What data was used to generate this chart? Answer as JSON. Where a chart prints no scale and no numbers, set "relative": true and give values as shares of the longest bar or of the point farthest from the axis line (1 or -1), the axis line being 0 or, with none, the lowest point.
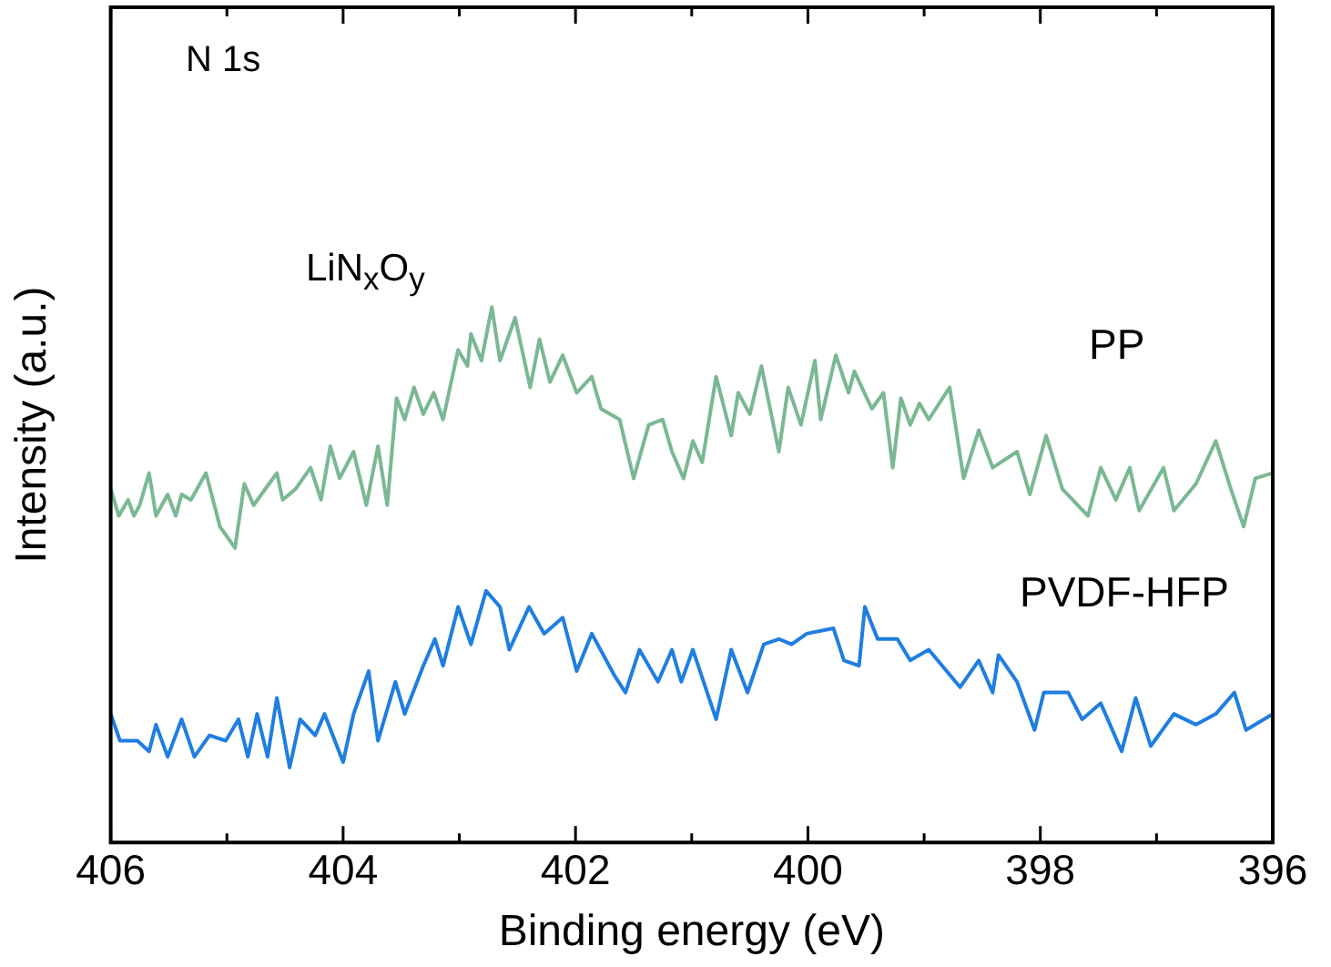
{
  "chart_data": {
    "type": "line",
    "xlabel": "Binding energy (eV)",
    "ylabel": "Intensity (a.u.)",
    "relative": true,
    "legend": false,
    "grid": false,
    "marker": "none",
    "line_style": "solid",
    "xlim": [
      406,
      396
    ],
    "xticks": [
      406,
      {
        "value": 405,
        "label": null
      },
      404,
      {
        "value": 403,
        "label": null
      },
      402,
      {
        "value": 401,
        "label": null
      },
      400,
      {
        "value": 399,
        "label": null
      },
      398,
      {
        "value": 397,
        "label": null
      },
      396
    ],
    "annotations": [
      "N 1s",
      "LiN$_{x}$O$_{y}$"
    ],
    "series": [
      {
        "name": "PP",
        "color": "#7ab893",
        "x": [
          406.0,
          405.93,
          405.85,
          405.8,
          405.75,
          405.67,
          405.61,
          405.51,
          405.44,
          405.39,
          405.31,
          405.18,
          405.06,
          404.93,
          404.85,
          404.77,
          404.57,
          404.52,
          404.41,
          404.28,
          404.19,
          404.11,
          404.03,
          403.91,
          403.8,
          403.7,
          403.62,
          403.54,
          403.47,
          403.39,
          403.31,
          403.22,
          403.14,
          403.01,
          402.93,
          402.9,
          402.81,
          402.72,
          402.65,
          402.52,
          402.39,
          402.31,
          402.22,
          402.11,
          401.99,
          401.86,
          401.78,
          401.62,
          401.5,
          401.37,
          401.25,
          401.17,
          401.07,
          400.99,
          400.91,
          400.79,
          400.66,
          400.6,
          400.5,
          400.4,
          400.25,
          400.17,
          400.06,
          399.94,
          399.89,
          399.76,
          399.65,
          399.6,
          399.45,
          399.35,
          399.27,
          399.2,
          399.12,
          399.04,
          398.96,
          398.78,
          398.66,
          398.53,
          398.41,
          398.2,
          398.09,
          397.95,
          397.81,
          397.59,
          397.48,
          397.35,
          397.23,
          397.15,
          396.94,
          396.85,
          396.66,
          396.49,
          396.36,
          396.25,
          396.15,
          396.0
        ],
        "values": [
          0.66,
          0.61,
          0.64,
          0.61,
          0.63,
          0.69,
          0.61,
          0.65,
          0.61,
          0.65,
          0.64,
          0.69,
          0.59,
          0.55,
          0.67,
          0.63,
          0.69,
          0.64,
          0.66,
          0.7,
          0.64,
          0.74,
          0.68,
          0.73,
          0.63,
          0.74,
          0.63,
          0.83,
          0.79,
          0.85,
          0.8,
          0.84,
          0.79,
          0.92,
          0.89,
          0.95,
          0.9,
          1.0,
          0.9,
          0.98,
          0.85,
          0.94,
          0.86,
          0.91,
          0.84,
          0.87,
          0.81,
          0.79,
          0.68,
          0.78,
          0.79,
          0.73,
          0.68,
          0.75,
          0.71,
          0.87,
          0.76,
          0.84,
          0.8,
          0.89,
          0.73,
          0.85,
          0.78,
          0.9,
          0.79,
          0.91,
          0.84,
          0.88,
          0.81,
          0.84,
          0.7,
          0.83,
          0.78,
          0.82,
          0.79,
          0.85,
          0.68,
          0.77,
          0.7,
          0.73,
          0.65,
          0.76,
          0.66,
          0.61,
          0.7,
          0.64,
          0.7,
          0.62,
          0.7,
          0.62,
          0.67,
          0.75,
          0.66,
          0.59,
          0.68,
          0.69
        ]
      },
      {
        "name": "PVDF-HFP",
        "color": "#1f7ee0",
        "x": [
          406.0,
          405.92,
          405.77,
          405.67,
          405.61,
          405.51,
          405.39,
          405.28,
          405.15,
          405.01,
          404.9,
          404.82,
          404.74,
          404.65,
          404.57,
          404.46,
          404.37,
          404.24,
          404.16,
          404.0,
          403.91,
          403.78,
          403.7,
          403.55,
          403.47,
          403.31,
          403.21,
          403.14,
          403.01,
          402.9,
          402.77,
          402.65,
          402.57,
          402.4,
          402.27,
          402.11,
          401.99,
          401.86,
          401.66,
          401.57,
          401.45,
          401.29,
          401.17,
          401.09,
          400.99,
          400.79,
          400.66,
          400.52,
          400.38,
          400.25,
          400.14,
          400.01,
          399.78,
          399.69,
          399.56,
          399.51,
          399.4,
          399.23,
          399.12,
          398.96,
          398.69,
          398.53,
          398.41,
          398.36,
          398.2,
          398.05,
          397.97,
          397.76,
          397.64,
          397.48,
          397.3,
          397.18,
          397.05,
          396.85,
          396.66,
          396.49,
          396.33,
          396.23,
          396.0
        ],
        "values": [
          0.24,
          0.19,
          0.19,
          0.17,
          0.22,
          0.16,
          0.23,
          0.16,
          0.2,
          0.19,
          0.23,
          0.16,
          0.24,
          0.16,
          0.27,
          0.14,
          0.23,
          0.2,
          0.24,
          0.15,
          0.24,
          0.32,
          0.19,
          0.3,
          0.24,
          0.33,
          0.38,
          0.33,
          0.44,
          0.37,
          0.47,
          0.44,
          0.36,
          0.44,
          0.39,
          0.42,
          0.32,
          0.39,
          0.31,
          0.28,
          0.36,
          0.3,
          0.36,
          0.3,
          0.36,
          0.23,
          0.36,
          0.28,
          0.37,
          0.38,
          0.37,
          0.39,
          0.4,
          0.34,
          0.33,
          0.44,
          0.38,
          0.38,
          0.34,
          0.36,
          0.29,
          0.34,
          0.28,
          0.35,
          0.3,
          0.21,
          0.28,
          0.28,
          0.23,
          0.26,
          0.17,
          0.27,
          0.18,
          0.24,
          0.22,
          0.24,
          0.28,
          0.21,
          0.24
        ]
      }
    ]
  }
}
